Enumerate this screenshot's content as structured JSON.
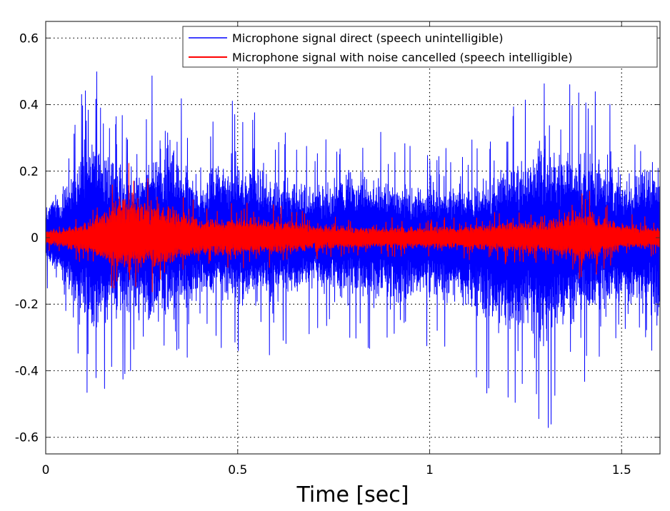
{
  "chart_data": {
    "type": "line",
    "xlabel": "Time [sec]",
    "ylabel": "",
    "xlim": [
      0,
      1.6
    ],
    "ylim": [
      -0.65,
      0.65
    ],
    "xticks": [
      0,
      0.5,
      1,
      1.5
    ],
    "xtick_labels": [
      "0",
      "0.5",
      "1",
      "1.5"
    ],
    "yticks": [
      -0.6,
      -0.4,
      -0.2,
      0,
      0.2,
      0.4,
      0.6
    ],
    "ytick_labels": [
      "-0.6",
      "-0.4",
      "-0.2",
      "0",
      "0.2",
      "0.4",
      "0.6"
    ],
    "grid": true,
    "legend_position": "top-right",
    "series": [
      {
        "name": "Microphone signal direct (speech unintelligible)",
        "color": "#0000ff",
        "envelope_x": [
          0,
          0.05,
          0.11,
          0.2,
          0.3,
          0.4,
          0.48,
          0.5,
          0.6,
          0.7,
          0.8,
          0.9,
          1.0,
          1.1,
          1.2,
          1.24,
          1.3,
          1.4,
          1.5,
          1.6
        ],
        "envelope_max": [
          0.16,
          0.3,
          0.59,
          0.38,
          0.54,
          0.35,
          0.43,
          0.4,
          0.35,
          0.28,
          0.38,
          0.3,
          0.28,
          0.3,
          0.4,
          0.48,
          0.52,
          0.48,
          0.38,
          0.4
        ],
        "envelope_min": [
          -0.14,
          -0.28,
          -0.52,
          -0.43,
          -0.48,
          -0.34,
          -0.35,
          -0.4,
          -0.36,
          -0.3,
          -0.33,
          -0.36,
          -0.33,
          -0.41,
          -0.55,
          -0.5,
          -0.6,
          -0.45,
          -0.35,
          -0.45
        ]
      },
      {
        "name": "Microphone signal with noise cancelled (speech intelligible)",
        "color": "#ff0000",
        "envelope_x": [
          0,
          0.1,
          0.2,
          0.3,
          0.4,
          0.5,
          0.6,
          0.7,
          0.8,
          0.9,
          1.0,
          1.1,
          1.2,
          1.3,
          1.4,
          1.5,
          1.6
        ],
        "envelope_max": [
          0.04,
          0.08,
          0.23,
          0.2,
          0.1,
          0.12,
          0.1,
          0.08,
          0.06,
          0.06,
          0.06,
          0.07,
          0.08,
          0.09,
          0.16,
          0.08,
          0.06
        ],
        "envelope_min": [
          -0.04,
          -0.08,
          -0.18,
          -0.16,
          -0.1,
          -0.1,
          -0.09,
          -0.07,
          -0.06,
          -0.06,
          -0.06,
          -0.07,
          -0.08,
          -0.09,
          -0.14,
          -0.07,
          -0.06
        ]
      }
    ]
  }
}
